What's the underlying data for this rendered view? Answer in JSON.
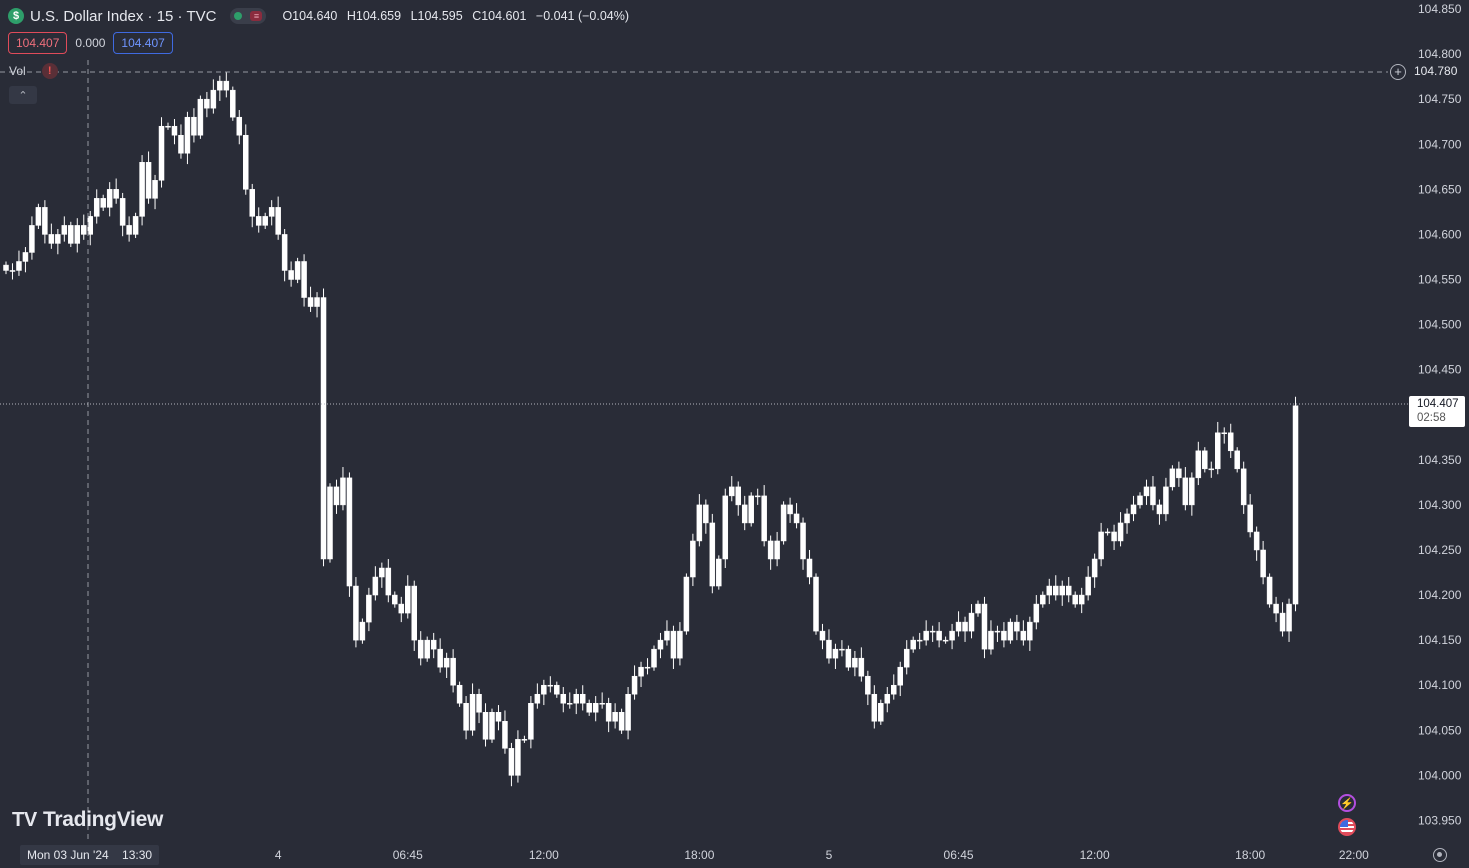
{
  "symbol": {
    "icon_letter": "$",
    "title": "U.S. Dollar Index · 15 · TVC"
  },
  "ohlc": {
    "open": "O104.640",
    "high": "H104.659",
    "low": "L104.595",
    "close": "C104.601",
    "change": "−0.041 (−0.04%)"
  },
  "quote": {
    "bid": "104.407",
    "spread": "0.000",
    "ask": "104.407"
  },
  "indicator": {
    "name": "Vol",
    "warning_icon": "!"
  },
  "collapse_icon": "⌃",
  "logo": {
    "mark": "𝟭𝟳",
    "text": "TradingView"
  },
  "crosshair": {
    "price": "104.780",
    "date": "Mon 03 Jun '24",
    "time": "13:30"
  },
  "last_price": {
    "value": "104.407",
    "countdown": "02:58"
  },
  "icons": {
    "add": "plus-circle-icon",
    "flash": "lightning-icon",
    "flag": "us-flag-icon",
    "settings": "gear-icon"
  },
  "colors": {
    "background": "#292c37",
    "candle_up": "#ffffff",
    "candle_down": "#ffffff",
    "bid": "#e04b5a",
    "ask": "#3f6ae0"
  },
  "chart_data": {
    "type": "candlestick",
    "interval": "15",
    "y_ticks": [
      "104.850",
      "104.800",
      "104.750",
      "104.700",
      "104.650",
      "104.600",
      "104.550",
      "104.500",
      "104.450",
      "104.350",
      "104.300",
      "104.250",
      "104.200",
      "104.150",
      "104.100",
      "104.050",
      "104.000",
      "103.950"
    ],
    "ylim": [
      103.925,
      104.86
    ],
    "x_ticks": [
      "18:00",
      "4",
      "06:45",
      "12:00",
      "18:00",
      "5",
      "06:45",
      "12:00",
      "18:00",
      "22:00"
    ],
    "x_tick_index": [
      18,
      42,
      62,
      83,
      107,
      127,
      147,
      168,
      192,
      208
    ],
    "grid": false,
    "series": [
      {
        "values": [
          104.56,
          104.56,
          104.57,
          104.58,
          104.61,
          104.63,
          104.6,
          104.59,
          104.6,
          104.61,
          104.59,
          104.61,
          104.6,
          104.62,
          104.64,
          104.63,
          104.65,
          104.64,
          104.61,
          104.6,
          104.62,
          104.68,
          104.64,
          104.66,
          104.72,
          104.72,
          104.71,
          104.69,
          104.73,
          104.71,
          104.75,
          104.74,
          104.76,
          104.77,
          104.76,
          104.73,
          104.71,
          104.65,
          104.62,
          104.61,
          104.62,
          104.63,
          104.6,
          104.56,
          104.55,
          104.57,
          104.53,
          104.52,
          104.53,
          104.24,
          104.32,
          104.3,
          104.33,
          104.21,
          104.15,
          104.17,
          104.2,
          104.22,
          104.23,
          104.2,
          104.19,
          104.18,
          104.21,
          104.15,
          104.13,
          104.15,
          104.14,
          104.12,
          104.13,
          104.1,
          104.08,
          104.05,
          104.09,
          104.07,
          104.04,
          104.07,
          104.06,
          104.03,
          104.0,
          104.04,
          104.04,
          104.08,
          104.09,
          104.1,
          104.1,
          104.09,
          104.08,
          104.08,
          104.09,
          104.08,
          104.07,
          104.08,
          104.08,
          104.06,
          104.07,
          104.05,
          104.09,
          104.11,
          104.12,
          104.12,
          104.14,
          104.15,
          104.16,
          104.13,
          104.16,
          104.22,
          104.26,
          104.3,
          104.28,
          104.21,
          104.24,
          104.31,
          104.32,
          104.3,
          104.28,
          104.31,
          104.31,
          104.26,
          104.24,
          104.26,
          104.3,
          104.29,
          104.28,
          104.24,
          104.22,
          104.16,
          104.15,
          104.13,
          104.14,
          104.14,
          104.12,
          104.13,
          104.11,
          104.09,
          104.06,
          104.08,
          104.09,
          104.1,
          104.12,
          104.14,
          104.15,
          104.15,
          104.16,
          104.16,
          104.15,
          104.15,
          104.16,
          104.17,
          104.16,
          104.18,
          104.19,
          104.14,
          104.16,
          104.16,
          104.15,
          104.17,
          104.16,
          104.15,
          104.17,
          104.19,
          104.2,
          104.21,
          104.2,
          104.21,
          104.2,
          104.19,
          104.2,
          104.22,
          104.24,
          104.27,
          104.27,
          104.26,
          104.28,
          104.29,
          104.3,
          104.31,
          104.32,
          104.3,
          104.29,
          104.32,
          104.34,
          104.33,
          104.3,
          104.33,
          104.36,
          104.34,
          104.34,
          104.38,
          104.38,
          104.36,
          104.34,
          104.3,
          104.27,
          104.25,
          104.22,
          104.19,
          104.18,
          104.16,
          104.19,
          104.41
        ]
      }
    ]
  }
}
